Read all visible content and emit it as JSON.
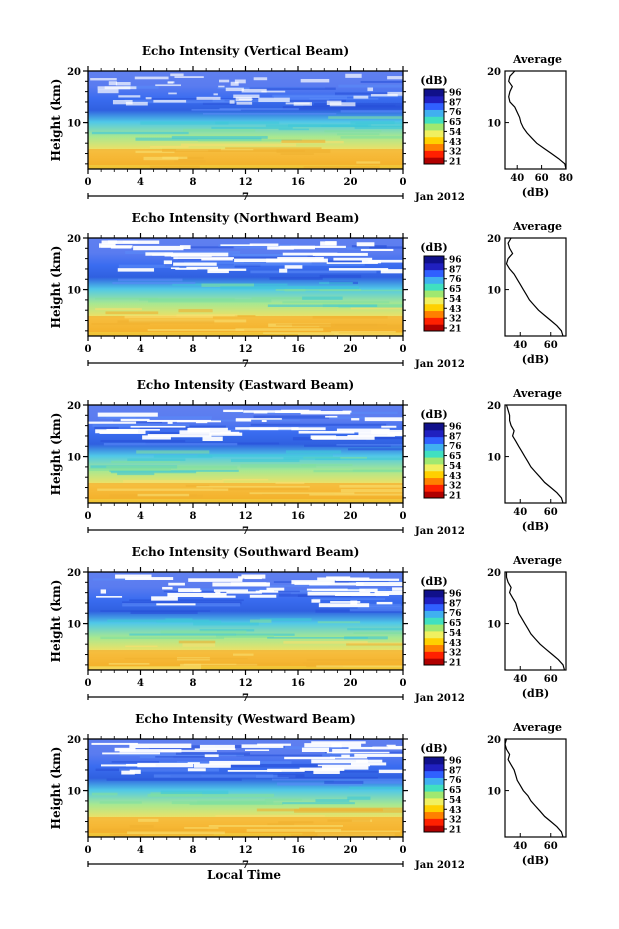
{
  "figure": {
    "xlabel": "Local Time",
    "date_label": "Jan 2012",
    "cursor_label": "7",
    "colorbar_unit": "(dB)",
    "colorbar_ticks": [
      "96",
      "87",
      "76",
      "65",
      "54",
      "43",
      "32",
      "21"
    ],
    "colorbar_colors": [
      "#b00000",
      "#ff2000",
      "#ff8000",
      "#ffd000",
      "#f0f060",
      "#a0e870",
      "#40e0c0",
      "#40b0f0",
      "#3060ff",
      "#2020c0",
      "#10108a"
    ]
  },
  "chart_data": [
    {
      "type": "heatmap",
      "title": "Echo Intensity (Vertical Beam)",
      "ylabel": "Height (km)",
      "xlabel": "Local Time",
      "x_ticks": [
        "0",
        "4",
        "8",
        "12",
        "16",
        "20",
        "0"
      ],
      "y_ticks": [
        "20",
        "10"
      ],
      "xlim": [
        0,
        24
      ],
      "ylim": [
        1,
        20
      ],
      "colorbar": {
        "label": "(dB)",
        "ticks": [
          96,
          87,
          76,
          65,
          54,
          43,
          32,
          21
        ]
      },
      "profile": {
        "title": "Average",
        "xlabel": "(dB)",
        "x_ticks": [
          "40",
          "60",
          "80"
        ],
        "xlim": [
          30,
          80
        ],
        "y_ticks": [
          "20",
          "10"
        ],
        "ylim": [
          1,
          20
        ],
        "height_km": [
          1,
          2,
          3,
          4,
          5,
          6,
          7,
          8,
          9,
          10,
          11,
          12,
          13,
          14,
          15,
          16,
          17,
          18,
          19,
          20
        ],
        "avg_db": [
          80,
          79,
          74,
          68,
          62,
          56,
          52,
          48,
          45,
          43,
          42,
          40,
          38,
          34,
          33,
          34,
          36,
          33,
          34,
          38
        ]
      }
    },
    {
      "type": "heatmap",
      "title": "Echo Intensity (Northward Beam)",
      "ylabel": "Height (km)",
      "xlabel": "Local Time",
      "x_ticks": [
        "0",
        "4",
        "8",
        "12",
        "16",
        "20",
        "0"
      ],
      "y_ticks": [
        "20",
        "10"
      ],
      "xlim": [
        0,
        24
      ],
      "ylim": [
        1,
        20
      ],
      "colorbar": {
        "label": "(dB)",
        "ticks": [
          96,
          87,
          76,
          65,
          54,
          43,
          32,
          21
        ]
      },
      "profile": {
        "title": "Average",
        "xlabel": "(dB)",
        "x_ticks": [
          "40",
          "60"
        ],
        "xlim": [
          30,
          70
        ],
        "y_ticks": [
          "20",
          "10"
        ],
        "ylim": [
          1,
          20
        ],
        "height_km": [
          1,
          2,
          3,
          4,
          5,
          6,
          7,
          8,
          9,
          10,
          11,
          12,
          13,
          14,
          15,
          16,
          17,
          18,
          19,
          20
        ],
        "avg_db": [
          68,
          67,
          64,
          60,
          56,
          52,
          49,
          46,
          44,
          42,
          40,
          38,
          36,
          33,
          31,
          32,
          35,
          33,
          32,
          34
        ]
      }
    },
    {
      "type": "heatmap",
      "title": "Echo Intensity (Eastward Beam)",
      "ylabel": "Height (km)",
      "xlabel": "Local Time",
      "x_ticks": [
        "0",
        "4",
        "8",
        "12",
        "16",
        "20",
        "0"
      ],
      "y_ticks": [
        "20",
        "10"
      ],
      "xlim": [
        0,
        24
      ],
      "ylim": [
        1,
        20
      ],
      "colorbar": {
        "label": "(dB)",
        "ticks": [
          96,
          87,
          76,
          65,
          54,
          43,
          32,
          21
        ]
      },
      "profile": {
        "title": "Average",
        "xlabel": "(dB)",
        "x_ticks": [
          "40",
          "60"
        ],
        "xlim": [
          30,
          70
        ],
        "y_ticks": [
          "20",
          "10"
        ],
        "ylim": [
          1,
          20
        ],
        "height_km": [
          1,
          2,
          3,
          4,
          5,
          6,
          7,
          8,
          9,
          10,
          11,
          12,
          13,
          14,
          15,
          16,
          17,
          18,
          19,
          20
        ],
        "avg_db": [
          68,
          67,
          64,
          60,
          56,
          53,
          50,
          47,
          45,
          43,
          41,
          39,
          37,
          35,
          36,
          34,
          33,
          33,
          32,
          31
        ]
      }
    },
    {
      "type": "heatmap",
      "title": "Echo Intensity (Southward Beam)",
      "ylabel": "Height (km)",
      "xlabel": "Local Time",
      "x_ticks": [
        "0",
        "4",
        "8",
        "12",
        "16",
        "20",
        "0"
      ],
      "y_ticks": [
        "20",
        "10"
      ],
      "xlim": [
        0,
        24
      ],
      "ylim": [
        1,
        20
      ],
      "colorbar": {
        "label": "(dB)",
        "ticks": [
          96,
          87,
          76,
          65,
          54,
          43,
          32,
          21
        ]
      },
      "profile": {
        "title": "Average",
        "xlabel": "(dB)",
        "x_ticks": [
          "40",
          "60"
        ],
        "xlim": [
          30,
          70
        ],
        "y_ticks": [
          "20",
          "10"
        ],
        "ylim": [
          1,
          20
        ],
        "height_km": [
          1,
          2,
          3,
          4,
          5,
          6,
          7,
          8,
          9,
          10,
          11,
          12,
          13,
          14,
          15,
          16,
          17,
          18,
          19,
          20
        ],
        "avg_db": [
          69,
          68,
          65,
          61,
          57,
          53,
          50,
          47,
          45,
          43,
          41,
          39,
          38,
          37,
          35,
          33,
          34,
          32,
          31,
          31
        ]
      }
    },
    {
      "type": "heatmap",
      "title": "Echo Intensity (Westward Beam)",
      "ylabel": "Height (km)",
      "xlabel": "Local Time",
      "x_ticks": [
        "0",
        "4",
        "8",
        "12",
        "16",
        "20",
        "0"
      ],
      "y_ticks": [
        "20",
        "10"
      ],
      "xlim": [
        0,
        24
      ],
      "ylim": [
        1,
        20
      ],
      "colorbar": {
        "label": "(dB)",
        "ticks": [
          96,
          87,
          76,
          65,
          54,
          43,
          32,
          21
        ]
      },
      "profile": {
        "title": "Average",
        "xlabel": "(dB)",
        "x_ticks": [
          "40",
          "60"
        ],
        "xlim": [
          30,
          70
        ],
        "y_ticks": [
          "20",
          "10"
        ],
        "ylim": [
          1,
          20
        ],
        "height_km": [
          1,
          2,
          3,
          4,
          5,
          6,
          7,
          8,
          9,
          10,
          11,
          12,
          13,
          14,
          15,
          16,
          17,
          18,
          19,
          20
        ],
        "avg_db": [
          68,
          67,
          64,
          60,
          56,
          53,
          50,
          47,
          45,
          42,
          40,
          38,
          37,
          36,
          34,
          32,
          33,
          31,
          30,
          31
        ]
      }
    }
  ]
}
